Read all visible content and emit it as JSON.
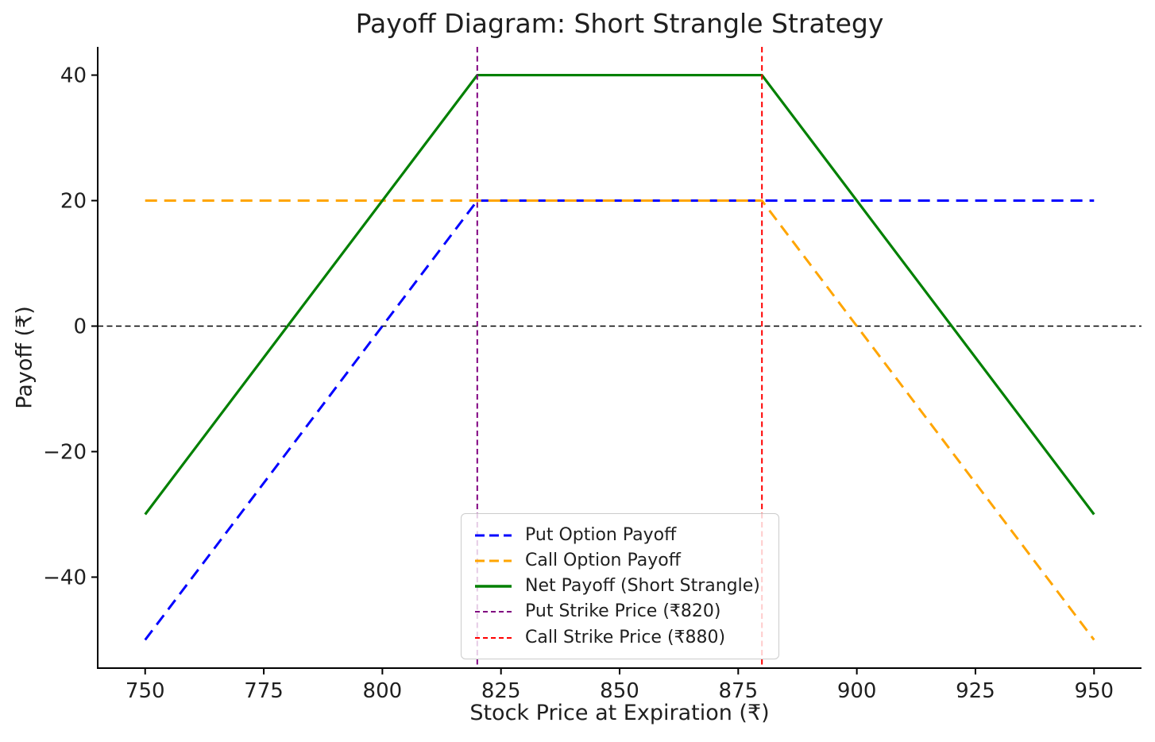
{
  "chart_data": {
    "type": "line",
    "title": "Payoff Diagram: Short Strangle Strategy",
    "xlabel": "Stock Price at Expiration (₹)",
    "ylabel": "Payoff (₹)",
    "xlim": [
      740,
      960
    ],
    "ylim": [
      -54.5,
      44.5
    ],
    "x_ticks": [
      750,
      775,
      800,
      825,
      850,
      875,
      900,
      925,
      950
    ],
    "y_ticks": [
      40,
      20,
      0,
      -20,
      -40
    ],
    "grid": false,
    "legend_position": "lower center inside plot",
    "series": [
      {
        "name": "Put Option Payoff",
        "color": "#0000ff",
        "style": "dashed",
        "points": [
          [
            750,
            -50
          ],
          [
            820,
            20
          ],
          [
            950,
            20
          ]
        ]
      },
      {
        "name": "Call Option Payoff",
        "color": "#ffa500",
        "style": "dashed",
        "points": [
          [
            750,
            20
          ],
          [
            880,
            20
          ],
          [
            950,
            -50
          ]
        ]
      },
      {
        "name": "Net Payoff (Short Strangle)",
        "color": "#008000",
        "style": "solid",
        "points": [
          [
            750,
            -30
          ],
          [
            820,
            40
          ],
          [
            880,
            40
          ],
          [
            950,
            -30
          ]
        ]
      }
    ],
    "reference_lines": [
      {
        "name": "zero-line",
        "orientation": "horizontal",
        "value": 0,
        "color": "#000000",
        "style": "dashed-thin",
        "in_legend": false
      },
      {
        "name": "Put Strike Price (₹820)",
        "orientation": "vertical",
        "value": 820,
        "color": "#800080",
        "style": "dashed-thin",
        "in_legend": true
      },
      {
        "name": "Call Strike Price (₹880)",
        "orientation": "vertical",
        "value": 880,
        "color": "#ff0000",
        "style": "dashed-thin",
        "in_legend": true
      }
    ]
  }
}
